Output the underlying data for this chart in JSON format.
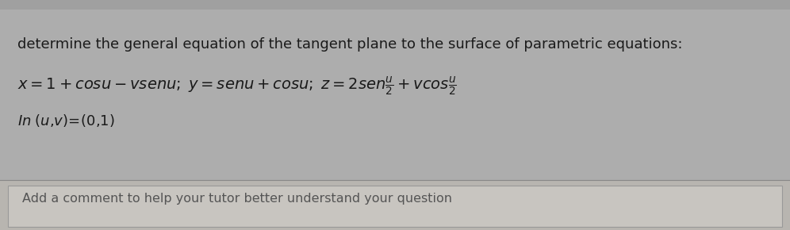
{
  "bg_color": "#adadad",
  "bg_color_top_strip": "#a0a0a0",
  "text_color": "#1a1a1a",
  "line1": "determine the general equation of the tangent plane to the surface of parametric equations:",
  "line2_math": "$x = 1 + cosu - vsenu;\\; y = senu + cosu;\\; z = 2sen\\frac{u}{2} + vcos\\frac{u}{2}$",
  "line3": "$In\\;( u{,}v)\\!=\\!(0{,}1)$",
  "bottom_text": "Add a comment to help your tutor better understand your question",
  "bottom_bg": "#b8b5b0",
  "bottom_inner_bg": "#c8c5c0",
  "bottom_border": "#999999",
  "font_size_line1": 13.0,
  "font_size_line2": 14.0,
  "font_size_line3": 13.0,
  "font_size_bottom": 11.5,
  "fig_width": 9.96,
  "fig_height": 2.9,
  "dpi": 100
}
